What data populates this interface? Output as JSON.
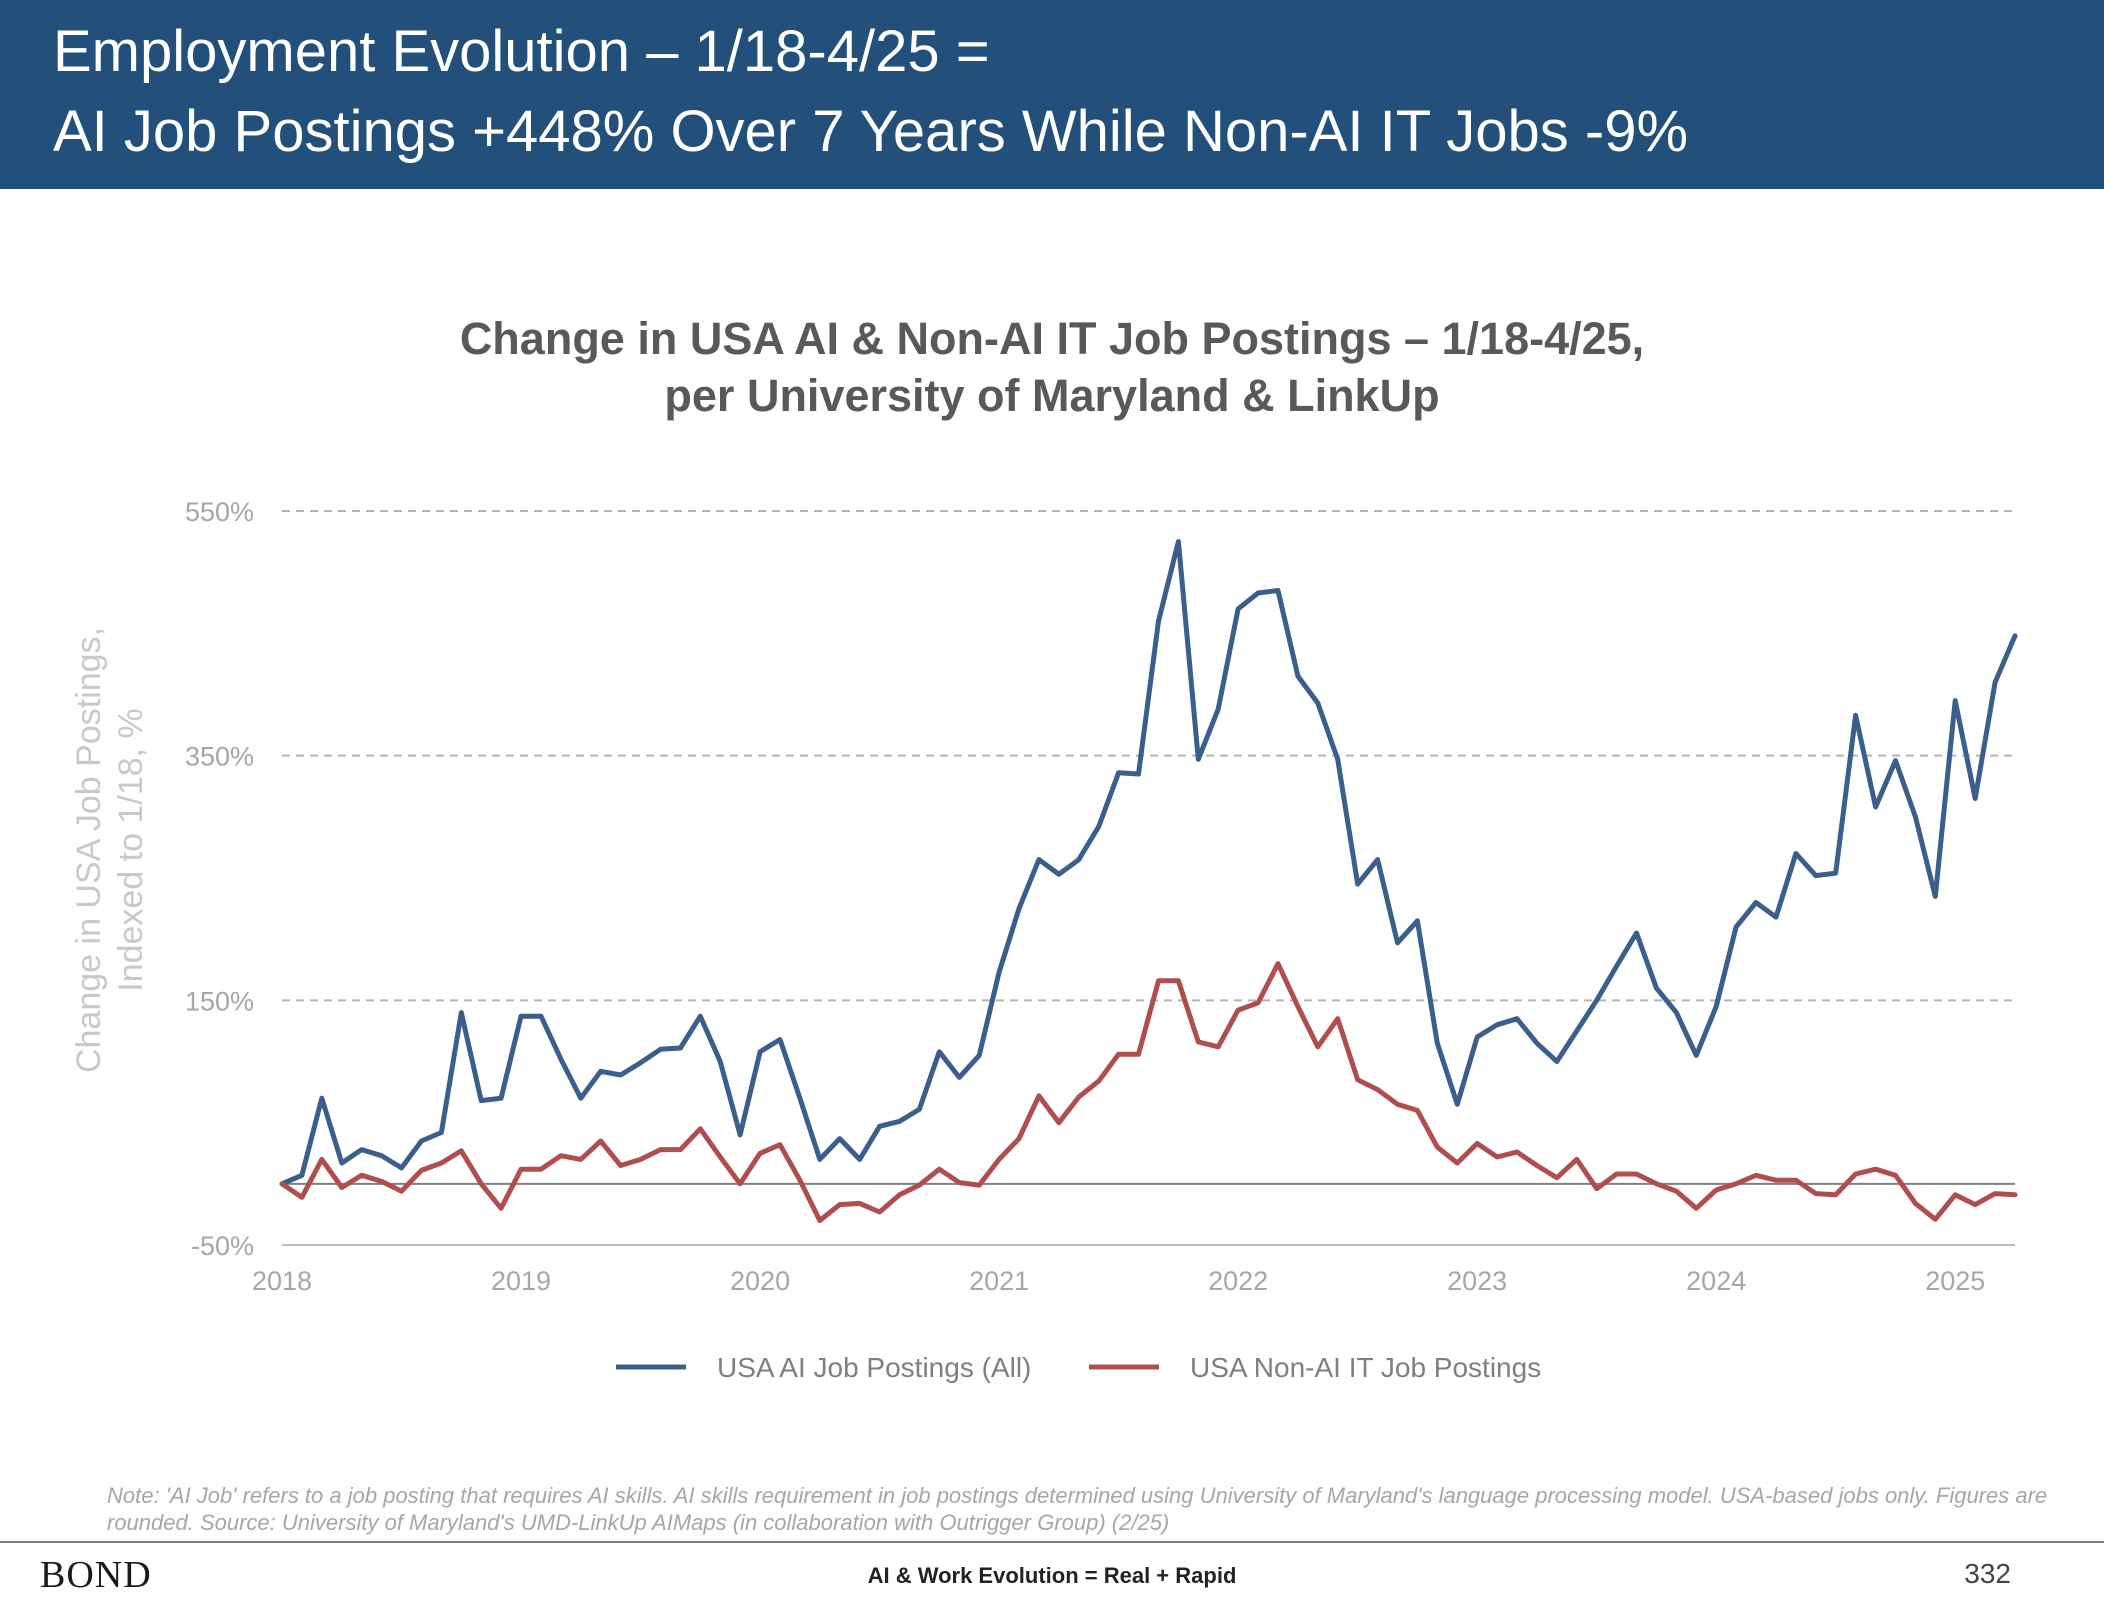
{
  "header": {
    "title_line1": "Employment Evolution – 1/18-4/25 =",
    "title_line2": "AI Job Postings +448% Over 7 Years While Non-AI IT Jobs -9%"
  },
  "chart_data": {
    "type": "line",
    "title_line1": "Change in USA AI & Non-AI IT Job Postings – 1/18-4/25,",
    "title_line2": "per University of Maryland & LinkUp",
    "ylabel_line1": "Change in USA Job Postings,",
    "ylabel_line2": "Indexed to 1/18, %",
    "xlabel": "",
    "xlim": [
      2018,
      2025.25
    ],
    "ylim": [
      -50,
      550
    ],
    "yticks": [
      -50,
      150,
      350,
      550
    ],
    "ytick_labels": [
      "-50%",
      "150%",
      "350%",
      "550%"
    ],
    "xticks": [
      2018,
      2019,
      2020,
      2021,
      2022,
      2023,
      2024,
      2025
    ],
    "xtick_labels": [
      "2018",
      "2019",
      "2020",
      "2021",
      "2022",
      "2023",
      "2024",
      "2025"
    ],
    "grid": "horizontal dashed",
    "legend_position": "bottom",
    "series": [
      {
        "name": "USA AI Job Postings (All)",
        "color": "#3b5f8c",
        "x_start": 2018,
        "x_step": 0.0833333,
        "values": [
          0,
          7,
          70,
          17,
          28,
          23,
          13,
          35,
          42,
          140,
          68,
          70,
          137,
          137,
          102,
          70,
          92,
          89,
          99,
          110,
          111,
          137,
          100,
          40,
          108,
          118,
          70,
          20,
          37,
          20,
          47,
          51,
          61,
          108,
          87,
          105,
          173,
          225,
          265,
          253,
          265,
          292,
          336,
          335,
          460,
          525,
          347,
          388,
          470,
          483,
          485,
          415,
          393,
          347,
          245,
          265,
          197,
          215,
          115,
          65,
          120,
          130,
          135,
          115,
          100,
          125,
          150,
          178,
          205,
          160,
          140,
          105,
          145,
          210,
          230,
          218,
          270,
          252,
          254,
          383,
          308,
          346,
          300,
          235,
          395,
          315,
          410,
          448
        ]
      },
      {
        "name": "USA Non-AI IT Job Postings",
        "color": "#b04e4e",
        "x_start": 2018,
        "x_step": 0.0833333,
        "values": [
          0,
          -11,
          20,
          -3,
          7,
          2,
          -6,
          11,
          17,
          27,
          0,
          -20,
          12,
          12,
          23,
          20,
          35,
          15,
          20,
          28,
          28,
          45,
          22,
          0,
          25,
          32,
          3,
          -30,
          -17,
          -16,
          -23,
          -9,
          -1,
          12,
          1,
          -1,
          20,
          37,
          72,
          50,
          71,
          84,
          106,
          106,
          166,
          166,
          116,
          112,
          142,
          148,
          180,
          145,
          112,
          135,
          85,
          77,
          65,
          60,
          30,
          17,
          33,
          22,
          26,
          15,
          5,
          20,
          -4,
          8,
          8,
          0,
          -6,
          -20,
          -5,
          0,
          7,
          3,
          3,
          -8,
          -9,
          8,
          12,
          7,
          -16,
          -29,
          -9,
          -17,
          -8,
          -9
        ]
      }
    ]
  },
  "note": "Note: 'AI Job' refers to a job posting that requires AI skills. AI skills requirement in job postings determined using University of Maryland's language processing model. USA-based jobs only. Figures are rounded. Source: University of Maryland's UMD-LinkUp AIMaps (in collaboration with Outrigger Group) (2/25)",
  "footer": {
    "logo": "BOND",
    "center_text": "AI & Work Evolution = Real + Rapid",
    "page_number": "332"
  }
}
